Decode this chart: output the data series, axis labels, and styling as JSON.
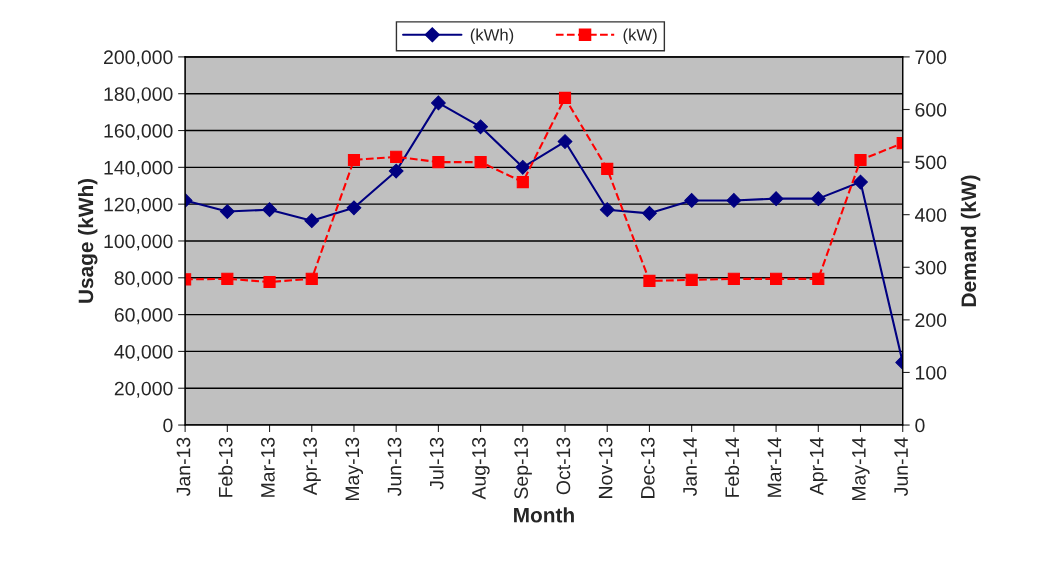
{
  "chart_data": {
    "type": "line",
    "xlabel": "Month",
    "ylabel": "Usage (kWh)",
    "y2label": "Demand (kW)",
    "categories": [
      "Jan-13",
      "Feb-13",
      "Mar-13",
      "Apr-13",
      "May-13",
      "Jun-13",
      "Jul-13",
      "Aug-13",
      "Sep-13",
      "Oct-13",
      "Nov-13",
      "Dec-13",
      "Jan-14",
      "Feb-14",
      "Mar-14",
      "Apr-14",
      "May-14",
      "Jun-14"
    ],
    "series": [
      {
        "name": "(kWh)",
        "color": "#000080",
        "marker": "diamond",
        "line_style": "solid",
        "values": [
          122000,
          116000,
          117000,
          111000,
          118000,
          138000,
          175000,
          162000,
          140000,
          154000,
          117000,
          115000,
          122000,
          122000,
          123000,
          123000,
          132000,
          34000
        ]
      },
      {
        "name": "(kW)",
        "color": "#ff0000",
        "marker": "square",
        "line_style": "dashed",
        "axis": "y2",
        "values": [
          277,
          278,
          272,
          278,
          504,
          510,
          500,
          500,
          462,
          622,
          487,
          274,
          276,
          278,
          278,
          278,
          504,
          536
        ]
      }
    ],
    "ylim": [
      0,
      200000
    ],
    "yticks": [
      0,
      {
        "value": 20000,
        "label": "20,000"
      },
      {
        "value": 40000,
        "label": "40,000"
      },
      {
        "value": 60000,
        "label": "60,000"
      },
      {
        "value": 80000,
        "label": "80,000"
      },
      {
        "value": 100000,
        "label": "100,000"
      },
      {
        "value": 120000,
        "label": "120,000"
      },
      {
        "value": 140000,
        "label": "140,000"
      },
      {
        "value": 160000,
        "label": "160,000"
      },
      {
        "value": 180000,
        "label": "180,000"
      },
      {
        "value": 200000,
        "label": "200,000"
      }
    ],
    "y2lim": [
      0,
      700
    ],
    "y2ticks": [
      0,
      100,
      200,
      300,
      400,
      500,
      600,
      700
    ],
    "grid": "y",
    "legend": "top"
  }
}
